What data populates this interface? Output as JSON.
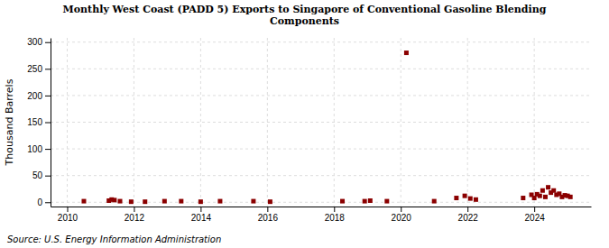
{
  "chart_data": {
    "type": "scatter",
    "title": "Monthly West Coast (PADD 5) Exports to Singapore of Conventional Gasoline Blending\nComponents",
    "y_label": "Thousand Barrels",
    "source": "Source: U.S. Energy Information Administration",
    "color": "#8b0000",
    "marker": "square",
    "grid": true,
    "xlim": [
      2009.5,
      2025.7
    ],
    "ylim": [
      -8,
      308
    ],
    "yticks": [
      0,
      50,
      100,
      150,
      200,
      250,
      300
    ],
    "xticks": [
      2010,
      2012,
      2014,
      2016,
      2018,
      2020,
      2022,
      2024
    ],
    "x": [
      2010.5,
      2011.25,
      2011.333,
      2011.417,
      2011.583,
      2011.917,
      2012.333,
      2012.917,
      2013.417,
      2014.0,
      2014.583,
      2015.583,
      2016.083,
      2018.25,
      2018.917,
      2019.083,
      2019.583,
      2020.167,
      2021.0,
      2021.667,
      2021.917,
      2022.083,
      2022.25,
      2023.667,
      2023.917,
      2024.0,
      2024.083,
      2024.167,
      2024.25,
      2024.333,
      2024.417,
      2024.5,
      2024.583,
      2024.667,
      2024.75,
      2024.833,
      2024.917,
      2025.0,
      2025.083
    ],
    "values": [
      2,
      3,
      5,
      4,
      2,
      1,
      1,
      2,
      2,
      1,
      2,
      2,
      1,
      2,
      2,
      3,
      2,
      280,
      2,
      8,
      12,
      7,
      5,
      8,
      14,
      8,
      15,
      12,
      22,
      10,
      28,
      18,
      22,
      14,
      16,
      10,
      13,
      12,
      10
    ]
  }
}
